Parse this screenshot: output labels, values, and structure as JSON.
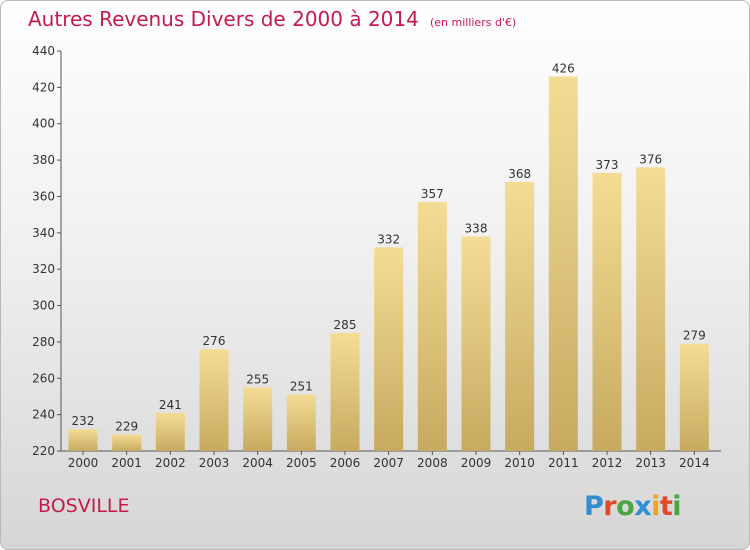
{
  "title": "Autres Revenus Divers de 2000 à 2014",
  "subtitle": "(en milliers d'€)",
  "city": "BOSVILLE",
  "logo": {
    "text": "Proxiti",
    "colors": [
      "#2f8fd0",
      "#e0482c",
      "#49a641",
      "#2f8fd0",
      "#f0a31c",
      "#e0482c",
      "#49a641"
    ]
  },
  "colors": {
    "accent": "#c8194c",
    "bar_light": "#f5dc94",
    "bar_dark": "#c7aa60"
  },
  "chart_data": {
    "type": "bar",
    "categories": [
      "2000",
      "2001",
      "2002",
      "2003",
      "2004",
      "2005",
      "2006",
      "2007",
      "2008",
      "2009",
      "2010",
      "2011",
      "2012",
      "2013",
      "2014"
    ],
    "values": [
      232,
      229,
      241,
      276,
      255,
      251,
      285,
      332,
      357,
      338,
      368,
      426,
      373,
      376,
      279
    ],
    "ylim": [
      220,
      440
    ],
    "yticks": [
      220,
      240,
      260,
      280,
      300,
      320,
      340,
      360,
      380,
      400,
      420,
      440
    ],
    "grid": false
  }
}
